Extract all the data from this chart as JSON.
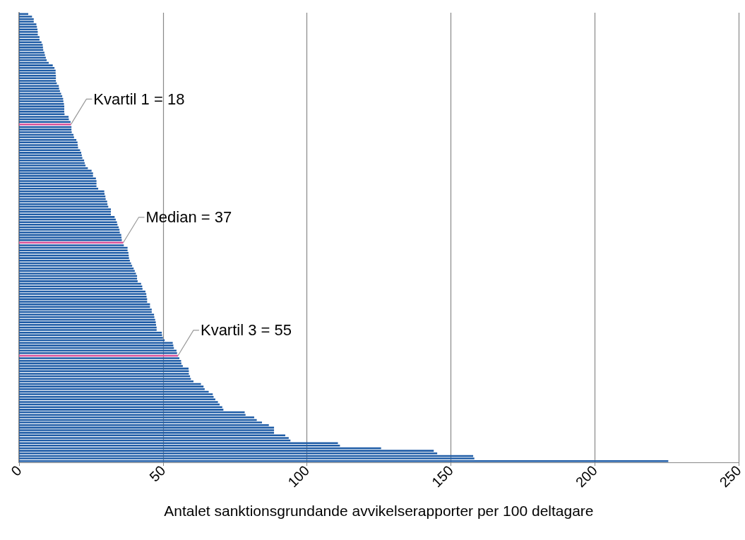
{
  "chart_data": {
    "type": "bar",
    "orientation": "horizontal",
    "xlabel": "Antalet sanktionsgrundande avvikelserapporter per 100 deltagare",
    "categories": [
      null,
      null,
      null,
      null,
      null,
      null,
      null,
      null,
      null,
      null,
      null,
      null,
      null,
      null,
      null,
      null,
      null,
      null,
      null,
      null,
      null,
      null,
      null,
      null,
      null,
      null,
      null,
      null,
      null,
      null,
      null,
      null,
      null,
      null,
      null,
      null,
      null,
      null,
      null,
      null,
      null,
      null,
      null,
      null,
      null,
      null,
      null,
      null,
      null,
      null,
      null,
      null,
      null,
      null,
      null,
      null,
      null,
      null,
      null,
      null,
      null,
      null,
      null,
      null,
      null,
      null,
      null,
      null,
      null,
      null,
      null,
      null,
      null,
      null,
      null,
      null,
      null,
      null,
      null,
      null,
      null,
      null,
      null,
      null,
      null,
      null,
      null,
      null,
      null,
      null,
      null,
      null,
      null,
      null,
      null,
      null,
      null,
      null,
      null,
      null,
      null,
      null,
      null,
      null,
      null,
      null,
      null,
      null,
      null,
      null,
      null,
      null,
      null,
      null,
      null,
      null,
      null,
      null,
      null,
      null,
      null,
      null,
      null,
      null,
      null,
      null,
      null,
      null,
      null,
      null,
      null,
      null,
      null,
      null,
      null,
      null,
      null,
      null,
      null,
      null,
      null,
      null,
      null,
      null,
      null,
      null,
      null,
      null,
      null,
      null,
      null,
      null,
      null,
      null,
      null,
      null,
      null,
      null,
      null,
      null,
      null,
      null,
      null,
      null,
      null,
      null,
      null,
      null,
      null,
      null,
      null,
      null,
      null,
      null,
      null
    ],
    "values": [
      3.2,
      4.5,
      5.1,
      5.1,
      6.0,
      6.2,
      6.4,
      6.5,
      6.5,
      7.1,
      7.1,
      7.8,
      8.2,
      8.3,
      8.4,
      8.8,
      9.0,
      9.3,
      9.6,
      10.3,
      11.7,
      12.3,
      12.7,
      12.7,
      12.8,
      12.8,
      12.8,
      13.1,
      13.8,
      13.9,
      14.2,
      14.6,
      15.0,
      15.3,
      15.4,
      15.6,
      15.7,
      15.7,
      15.7,
      15.8,
      17.2,
      17.3,
      17.9,
      18.0,
      18.2,
      18.2,
      18.3,
      18.9,
      19.1,
      19.9,
      20.3,
      20.4,
      20.5,
      21.2,
      21.6,
      21.8,
      22.0,
      22.6,
      22.8,
      23.1,
      23.9,
      25.2,
      25.7,
      25.7,
      26.7,
      26.9,
      26.9,
      26.9,
      27.5,
      29.6,
      29.7,
      30.0,
      30.1,
      30.6,
      30.7,
      31.0,
      31.9,
      31.9,
      31.9,
      33.2,
      33.6,
      34.0,
      34.2,
      34.6,
      34.9,
      35.0,
      35.5,
      35.6,
      35.7,
      36.2,
      36.4,
      37.7,
      37.7,
      38.0,
      38.1,
      38.2,
      38.5,
      38.9,
      39.3,
      39.8,
      40.2,
      40.6,
      41.0,
      41.0,
      41.2,
      42.4,
      42.8,
      42.9,
      43.9,
      44.2,
      44.3,
      44.5,
      44.5,
      45.5,
      45.5,
      46.1,
      46.1,
      46.9,
      47.0,
      47.3,
      47.5,
      47.6,
      47.8,
      47.8,
      49.6,
      49.7,
      50.0,
      50.6,
      53.4,
      53.6,
      53.8,
      54.7,
      54.9,
      55.2,
      55.7,
      56.3,
      56.4,
      56.9,
      58.9,
      59.0,
      59.0,
      59.4,
      59.7,
      60.6,
      63.2,
      64.1,
      64.5,
      65.9,
      67.3,
      67.6,
      68.2,
      69.1,
      69.7,
      70.6,
      71.0,
      78.4,
      78.7,
      81.7,
      82.6,
      84.4,
      86.8,
      88.6,
      88.6,
      88.6,
      92.5,
      93.7,
      94.3,
      110.8,
      111.5,
      125.8,
      144.1,
      145.3,
      157.8,
      158.2,
      225.6
    ],
    "colors": [
      "#1f5ca6",
      "#1f5ca6",
      "#1f5ca6",
      "#1f5ca6",
      "#1f5ca6",
      "#1f5ca6",
      "#1f5ca6",
      "#1f5ca6",
      "#1f5ca6",
      "#1f5ca6",
      "#1f5ca6",
      "#1f5ca6",
      "#1f5ca6",
      "#1f5ca6",
      "#1f5ca6",
      "#1f5ca6",
      "#1f5ca6",
      "#1f5ca6",
      "#1f5ca6",
      "#1f5ca6",
      "#1f5ca6",
      "#1f5ca6",
      "#1f5ca6",
      "#1f5ca6",
      "#1f5ca6",
      "#1f5ca6",
      "#1f5ca6",
      "#1f5ca6",
      "#1f5ca6",
      "#1f5ca6",
      "#1f5ca6",
      "#1f5ca6",
      "#1f5ca6",
      "#1f5ca6",
      "#1f5ca6",
      "#1f5ca6",
      "#1f5ca6",
      "#1f5ca6",
      "#1f5ca6",
      "#1f5ca6",
      "#1f5ca6",
      "#1f5ca6",
      "#1f5ca6",
      "#d9529a",
      "#1f5ca6",
      "#1f5ca6",
      "#1f5ca6",
      "#1f5ca6",
      "#1f5ca6",
      "#1f5ca6",
      "#1f5ca6",
      "#1f5ca6",
      "#1f5ca6",
      "#1f5ca6",
      "#1f5ca6",
      "#1f5ca6",
      "#1f5ca6",
      "#1f5ca6",
      "#1f5ca6",
      "#1f5ca6",
      "#1f5ca6",
      "#1f5ca6",
      "#1f5ca6",
      "#1f5ca6",
      "#1f5ca6",
      "#1f5ca6",
      "#1f5ca6",
      "#1f5ca6",
      "#1f5ca6",
      "#1f5ca6",
      "#1f5ca6",
      "#1f5ca6",
      "#1f5ca6",
      "#1f5ca6",
      "#1f5ca6",
      "#1f5ca6",
      "#1f5ca6",
      "#1f5ca6",
      "#1f5ca6",
      "#1f5ca6",
      "#1f5ca6",
      "#1f5ca6",
      "#1f5ca6",
      "#1f5ca6",
      "#1f5ca6",
      "#1f5ca6",
      "#1f5ca6",
      "#1f5ca6",
      "#1f5ca6",
      "#d9529a",
      "#1f5ca6",
      "#1f5ca6",
      "#1f5ca6",
      "#1f5ca6",
      "#1f5ca6",
      "#1f5ca6",
      "#1f5ca6",
      "#1f5ca6",
      "#1f5ca6",
      "#1f5ca6",
      "#1f5ca6",
      "#1f5ca6",
      "#1f5ca6",
      "#1f5ca6",
      "#1f5ca6",
      "#1f5ca6",
      "#1f5ca6",
      "#1f5ca6",
      "#1f5ca6",
      "#1f5ca6",
      "#1f5ca6",
      "#1f5ca6",
      "#1f5ca6",
      "#1f5ca6",
      "#1f5ca6",
      "#1f5ca6",
      "#1f5ca6",
      "#1f5ca6",
      "#1f5ca6",
      "#1f5ca6",
      "#1f5ca6",
      "#1f5ca6",
      "#1f5ca6",
      "#1f5ca6",
      "#1f5ca6",
      "#1f5ca6",
      "#1f5ca6",
      "#1f5ca6",
      "#1f5ca6",
      "#1f5ca6",
      "#1f5ca6",
      "#1f5ca6",
      "#1f5ca6",
      "#d9529a",
      "#1f5ca6",
      "#1f5ca6",
      "#1f5ca6",
      "#1f5ca6",
      "#1f5ca6",
      "#1f5ca6",
      "#1f5ca6",
      "#1f5ca6",
      "#1f5ca6",
      "#1f5ca6",
      "#1f5ca6",
      "#1f5ca6",
      "#1f5ca6",
      "#1f5ca6",
      "#1f5ca6",
      "#1f5ca6",
      "#1f5ca6",
      "#1f5ca6",
      "#1f5ca6",
      "#1f5ca6",
      "#1f5ca6",
      "#1f5ca6",
      "#1f5ca6",
      "#1f5ca6",
      "#1f5ca6",
      "#1f5ca6",
      "#1f5ca6",
      "#1f5ca6",
      "#1f5ca6",
      "#1f5ca6",
      "#1f5ca6",
      "#1f5ca6",
      "#1f5ca6",
      "#1f5ca6",
      "#1f5ca6",
      "#1f5ca6",
      "#1f5ca6",
      "#1f5ca6",
      "#1f5ca6",
      "#1f5ca6",
      "#1f5ca6"
    ],
    "xlim": [
      0,
      250
    ],
    "xticks": [
      0,
      50,
      100,
      150,
      200,
      250
    ],
    "grid": "x",
    "annotations": [
      "Kvartil 1 = 18",
      "Median = 37",
      "Kvartil 3 = 55"
    ]
  }
}
